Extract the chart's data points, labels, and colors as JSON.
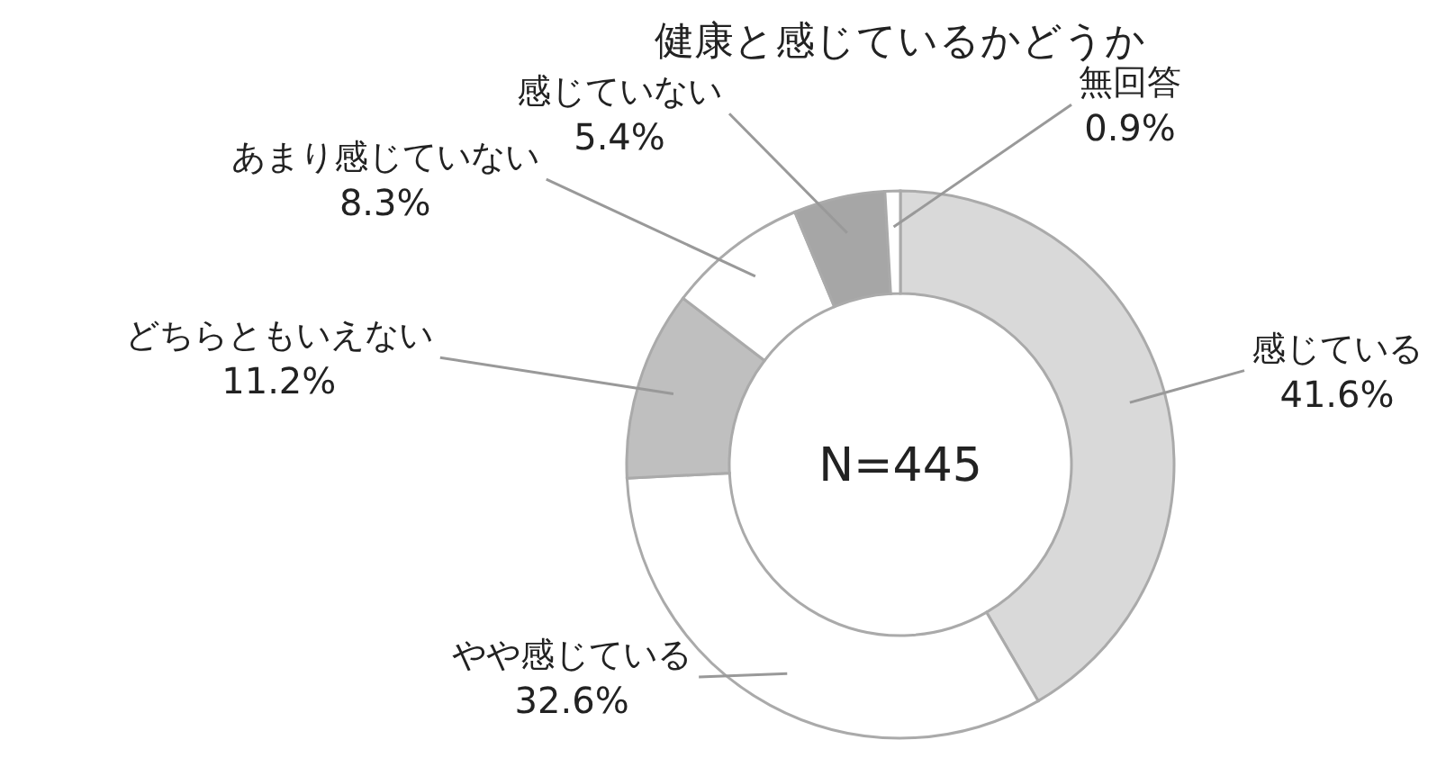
{
  "chart_data": {
    "type": "donut",
    "title": "健康と感じているかどうか",
    "categories": [
      "感じている",
      "やや感じている",
      "どちらともいえない",
      "あまり感じていない",
      "感じていない",
      "無回答"
    ],
    "values": [
      41.6,
      32.6,
      11.2,
      8.3,
      5.4,
      0.9
    ],
    "colors": [
      "#d9d9d9",
      "#ffffff",
      "#bfbfbf",
      "#ffffff",
      "#a6a6a6",
      "#ffffff"
    ],
    "value_labels": [
      "41.6%",
      "32.6%",
      "11.2%",
      "8.3%",
      "5.4%",
      "0.9%"
    ],
    "annotations": [
      "N=445"
    ]
  }
}
